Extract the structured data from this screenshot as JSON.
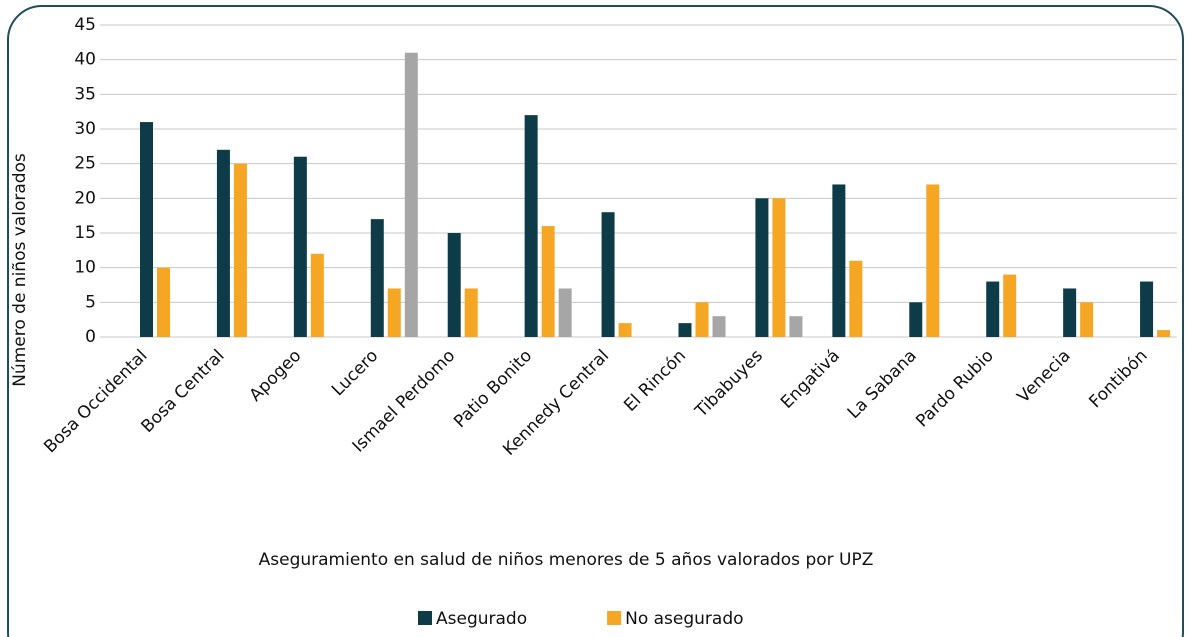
{
  "chart_data": {
    "type": "bar",
    "title": "Aseguramiento en salud de niños menores de 5 años valorados por UPZ",
    "y_label": "Número de niños valorados",
    "categories": [
      "Bosa Occidental",
      "Bosa Central",
      "Apogeo",
      "Lucero",
      "Ismael Perdomo",
      "Patio Bonito",
      "Kennedy Central",
      "El Rincón",
      "Tibabuyes",
      "Engativá",
      "La Sabana",
      "Pardo Rubio",
      "Venecia",
      "Fontibón"
    ],
    "series": [
      {
        "name": "Asegurado",
        "color": "#0d3c48",
        "values": [
          31,
          27,
          26,
          17,
          15,
          32,
          18,
          2,
          20,
          22,
          5,
          8,
          7,
          8
        ]
      },
      {
        "name": "No asegurado",
        "color": "#f5a623",
        "values": [
          10,
          25,
          12,
          7,
          7,
          16,
          2,
          5,
          20,
          11,
          22,
          9,
          5,
          1
        ]
      },
      {
        "color": "#a6a6a6",
        "values": [
          null,
          null,
          null,
          41,
          null,
          7,
          null,
          3,
          3,
          null,
          null,
          null,
          null,
          null
        ]
      }
    ],
    "ylim": [
      0,
      45
    ],
    "yticks": [
      0,
      5,
      10,
      15,
      20,
      25,
      30,
      35,
      40,
      45
    ],
    "grid": true
  }
}
